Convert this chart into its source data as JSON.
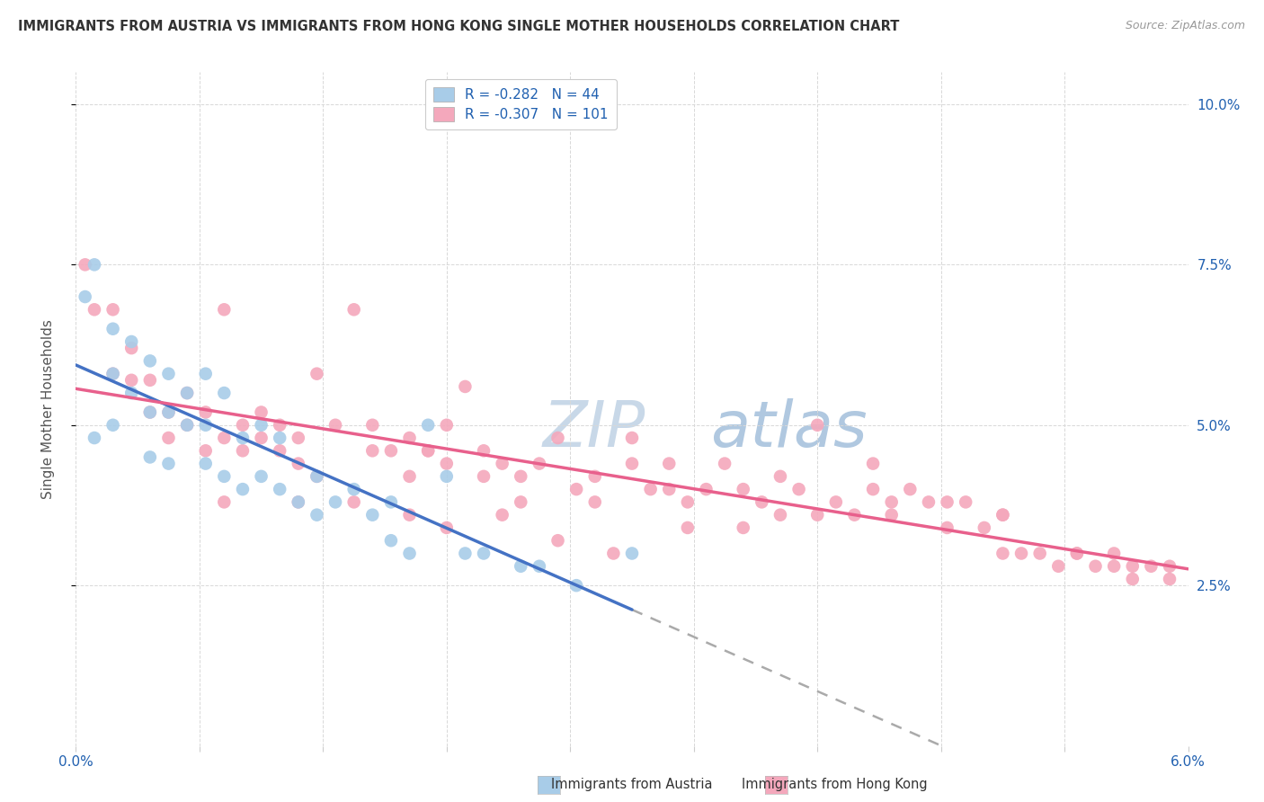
{
  "title": "IMMIGRANTS FROM AUSTRIA VS IMMIGRANTS FROM HONG KONG SINGLE MOTHER HOUSEHOLDS CORRELATION CHART",
  "source": "Source: ZipAtlas.com",
  "ylabel": "Single Mother Households",
  "austria_R": -0.282,
  "austria_N": 44,
  "hk_R": -0.307,
  "hk_N": 101,
  "austria_color": "#a8cce8",
  "hk_color": "#f4a8bc",
  "austria_line_color": "#4472c4",
  "hk_line_color": "#e8608c",
  "legend_text_color": "#2060b0",
  "axis_label_color": "#2060b0",
  "title_color": "#333333",
  "source_color": "#999999",
  "watermark_color": "#e0e8f0",
  "grid_color": "#d8d8d8",
  "austria_scatter_x": [
    0.0005,
    0.001,
    0.001,
    0.002,
    0.002,
    0.002,
    0.003,
    0.003,
    0.004,
    0.004,
    0.004,
    0.005,
    0.005,
    0.005,
    0.006,
    0.006,
    0.007,
    0.007,
    0.007,
    0.008,
    0.008,
    0.009,
    0.009,
    0.01,
    0.01,
    0.011,
    0.011,
    0.012,
    0.013,
    0.013,
    0.014,
    0.015,
    0.016,
    0.017,
    0.017,
    0.018,
    0.019,
    0.02,
    0.021,
    0.022,
    0.024,
    0.025,
    0.027,
    0.03
  ],
  "austria_scatter_y": [
    0.07,
    0.075,
    0.048,
    0.065,
    0.058,
    0.05,
    0.063,
    0.055,
    0.06,
    0.052,
    0.045,
    0.058,
    0.052,
    0.044,
    0.055,
    0.05,
    0.058,
    0.05,
    0.044,
    0.055,
    0.042,
    0.048,
    0.04,
    0.05,
    0.042,
    0.048,
    0.04,
    0.038,
    0.042,
    0.036,
    0.038,
    0.04,
    0.036,
    0.038,
    0.032,
    0.03,
    0.05,
    0.042,
    0.03,
    0.03,
    0.028,
    0.028,
    0.025,
    0.03
  ],
  "hk_scatter_x": [
    0.0005,
    0.001,
    0.002,
    0.002,
    0.003,
    0.003,
    0.004,
    0.004,
    0.005,
    0.005,
    0.006,
    0.006,
    0.007,
    0.007,
    0.008,
    0.008,
    0.009,
    0.009,
    0.01,
    0.01,
    0.011,
    0.011,
    0.012,
    0.012,
    0.013,
    0.013,
    0.014,
    0.015,
    0.016,
    0.016,
    0.017,
    0.018,
    0.018,
    0.019,
    0.02,
    0.02,
    0.021,
    0.022,
    0.022,
    0.023,
    0.024,
    0.024,
    0.025,
    0.026,
    0.027,
    0.028,
    0.028,
    0.03,
    0.03,
    0.031,
    0.032,
    0.033,
    0.034,
    0.035,
    0.036,
    0.037,
    0.038,
    0.039,
    0.04,
    0.041,
    0.042,
    0.043,
    0.044,
    0.045,
    0.046,
    0.047,
    0.048,
    0.049,
    0.05,
    0.051,
    0.052,
    0.053,
    0.054,
    0.055,
    0.056,
    0.057,
    0.058,
    0.059,
    0.008,
    0.012,
    0.015,
    0.018,
    0.02,
    0.023,
    0.026,
    0.029,
    0.033,
    0.036,
    0.04,
    0.043,
    0.047,
    0.05,
    0.054,
    0.057,
    0.032,
    0.038,
    0.044,
    0.05,
    0.056,
    0.059,
    0.019
  ],
  "hk_scatter_y": [
    0.075,
    0.068,
    0.068,
    0.058,
    0.062,
    0.057,
    0.057,
    0.052,
    0.052,
    0.048,
    0.055,
    0.05,
    0.052,
    0.046,
    0.068,
    0.048,
    0.05,
    0.046,
    0.052,
    0.048,
    0.05,
    0.046,
    0.048,
    0.044,
    0.058,
    0.042,
    0.05,
    0.068,
    0.05,
    0.046,
    0.046,
    0.048,
    0.042,
    0.046,
    0.05,
    0.044,
    0.056,
    0.046,
    0.042,
    0.044,
    0.042,
    0.038,
    0.044,
    0.048,
    0.04,
    0.042,
    0.038,
    0.048,
    0.044,
    0.04,
    0.04,
    0.038,
    0.04,
    0.044,
    0.04,
    0.038,
    0.036,
    0.04,
    0.036,
    0.038,
    0.036,
    0.04,
    0.036,
    0.04,
    0.038,
    0.034,
    0.038,
    0.034,
    0.03,
    0.03,
    0.03,
    0.028,
    0.03,
    0.028,
    0.028,
    0.026,
    0.028,
    0.026,
    0.038,
    0.038,
    0.038,
    0.036,
    0.034,
    0.036,
    0.032,
    0.03,
    0.034,
    0.034,
    0.05,
    0.044,
    0.038,
    0.036,
    0.03,
    0.028,
    0.044,
    0.042,
    0.038,
    0.036,
    0.03,
    0.028,
    0.046
  ],
  "austria_line_x_end": 0.03,
  "x_min": 0.0,
  "x_max": 0.06,
  "y_min": 0.0,
  "y_max": 0.105
}
